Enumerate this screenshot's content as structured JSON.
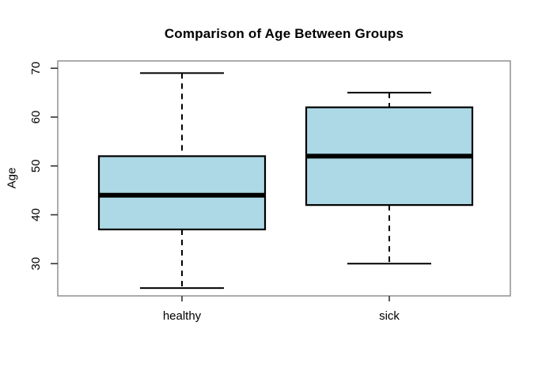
{
  "chart_data": {
    "type": "boxplot",
    "title": "Comparison of Age Between Groups",
    "ylabel": "Age",
    "xlabel": "",
    "categories": [
      "healthy",
      "sick"
    ],
    "y_ticks": [
      30,
      40,
      50,
      60,
      70
    ],
    "ylim": [
      23.4,
      71.5
    ],
    "series": [
      {
        "name": "healthy",
        "min": 25,
        "q1": 37,
        "median": 44,
        "q3": 52,
        "max": 69
      },
      {
        "name": "sick",
        "min": 30,
        "q1": 42,
        "median": 52,
        "q3": 62,
        "max": 65
      }
    ],
    "box_fill": "#ADD8E6",
    "line_color": "#000000",
    "border_color": "#808080",
    "tick_color": "#333333",
    "grid": false,
    "legend_position": "none"
  }
}
